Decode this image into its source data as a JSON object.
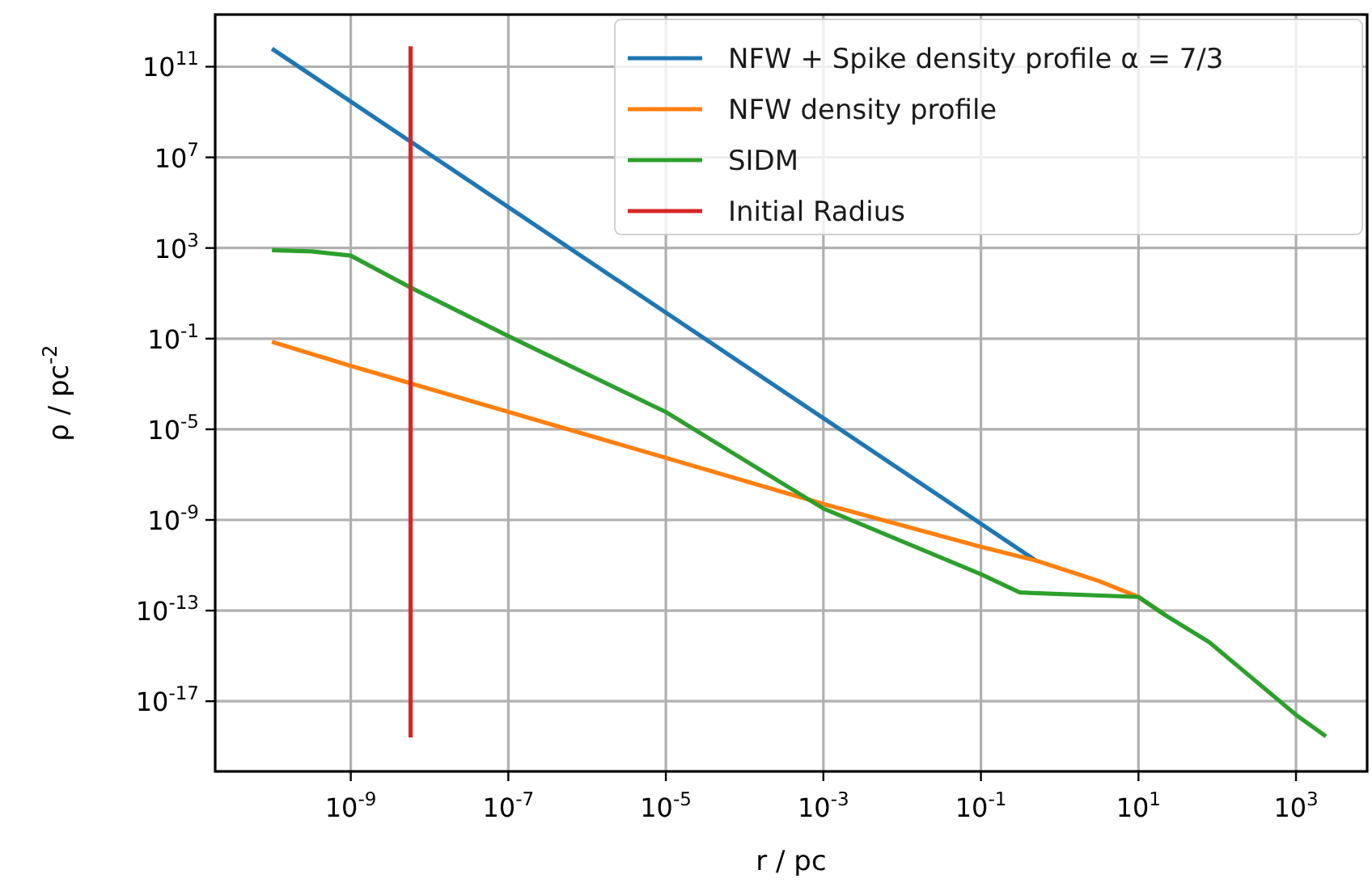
{
  "chart_data": {
    "type": "line",
    "xlabel": "r / pc",
    "ylabel": "ρ / pc$^{-2}$",
    "log": "xy",
    "grid": true,
    "legend": "top right",
    "line_style": "solid",
    "marker": "none",
    "xlim": [
      1.9e-11,
      8000
    ],
    "ylim": [
      8e-21,
      20000000000000.0
    ],
    "xticks": [
      {
        "value": 1e-09,
        "label": "10$^{-9}$"
      },
      {
        "value": 1e-07,
        "label": "10$^{-7}$"
      },
      {
        "value": 1e-05,
        "label": "10$^{-5}$"
      },
      {
        "value": 0.001,
        "label": "10$^{-3}$"
      },
      {
        "value": 0.1,
        "label": "10$^{-1}$"
      },
      {
        "value": 10,
        "label": "10$^{1}$"
      },
      {
        "value": 1000,
        "label": "10$^{3}$"
      }
    ],
    "yticks": [
      {
        "value": 100000000000.0,
        "label": "10$^{11}$"
      },
      {
        "value": 10000000.0,
        "label": "10$^{7}$"
      },
      {
        "value": 1000,
        "label": "10$^{3}$"
      },
      {
        "value": 0.1,
        "label": "10$^{-1}$"
      },
      {
        "value": 1e-05,
        "label": "10$^{-5}$"
      },
      {
        "value": 1e-09,
        "label": "10$^{-9}$"
      },
      {
        "value": 1e-13,
        "label": "10$^{-13}$"
      },
      {
        "value": 1e-17,
        "label": "10$^{-17}$"
      }
    ],
    "series": [
      {
        "name": "NFW + Spike density profile α = 7/3",
        "color": "#1f77b4",
        "x": [
          1e-10,
          0.5
        ],
        "values": [
          620000000000.0,
          1.6e-11
        ]
      },
      {
        "name": "NFW density profile",
        "color": "#ff7f0e",
        "x": [
          1e-10,
          1e-09,
          0.001,
          0.1,
          0.5,
          3.16,
          10,
          21.9
        ],
        "values": [
          0.072,
          0.0063,
          5.1e-09,
          6.5e-11,
          1.6e-11,
          2e-12,
          4e-13,
          6.3e-14
        ]
      },
      {
        "name": "SIDM",
        "color": "#2ca02c",
        "x": [
          1e-10,
          3.16e-10,
          1e-09,
          5.75e-09,
          1e-07,
          1e-05,
          0.001,
          0.1,
          0.31,
          10,
          21.9,
          79.4,
          1000,
          2400
        ],
        "values": [
          800,
          710,
          460,
          18,
          0.13,
          5.8e-05,
          3.2e-09,
          4e-12,
          6.3e-13,
          4e-13,
          6.3e-14,
          4e-15,
          2.5e-18,
          2.8e-19
        ]
      },
      {
        "name": "Initial Radius",
        "color": "#d62728",
        "x": [
          5.75e-09,
          5.75e-09
        ],
        "values": [
          800000000000.0,
          2.5e-19
        ]
      }
    ]
  }
}
